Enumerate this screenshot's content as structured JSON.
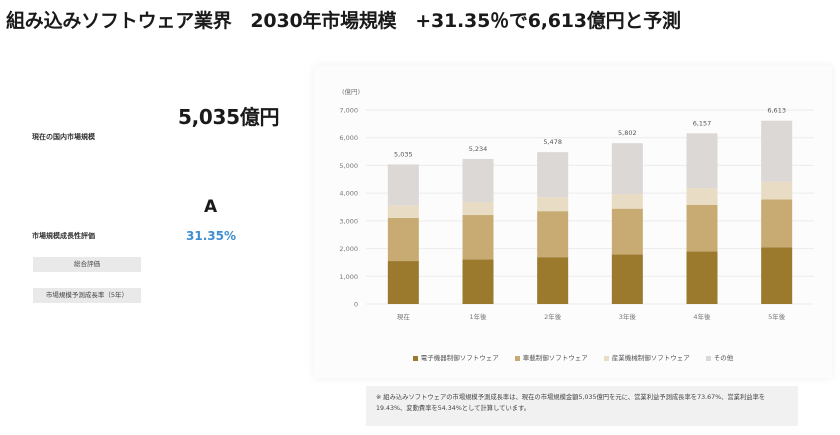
{
  "title": "組み込みソフトウェア業界　2030年市場規模　+31.35％で6,613億円と予測",
  "left_panel": {
    "market_label": "現在の国内市場規模",
    "market_value": "5,035億円",
    "evaluation_label": "市場規模成長性評価",
    "overall_label": "総合評価",
    "overall_value": "A",
    "growth_label": "市場規模予測成長率（5年）",
    "growth_value": "31.35%"
  },
  "note": "※ 組み込みソフトウェアの市場規模予測成長率は、現在の市場規模金額5,035億円を元に、営業利益予測成長率を73.67%、営業利益率を19.43%、変動費率を54.34%として計算しています。",
  "colors": {
    "series": [
      "#9c7a2d",
      "#c8ab72",
      "#e9dcc4",
      "#dbd8d5"
    ],
    "growth_text": "#3e8ed0"
  },
  "chart_data": {
    "type": "bar",
    "stacked": true,
    "unit_label": "(億円)",
    "categories": [
      "現在",
      "1年後",
      "2年後",
      "3年後",
      "4年後",
      "5年後"
    ],
    "totals": [
      5035,
      5234,
      5478,
      5802,
      6157,
      6613
    ],
    "total_labels": [
      "5,035",
      "5,234",
      "5,478",
      "5,802",
      "6,157",
      "6,613"
    ],
    "series": [
      {
        "name": "電子機器制御ソフトウェア",
        "values": [
          1550,
          1610,
          1690,
          1790,
          1900,
          2040
        ]
      },
      {
        "name": "車載制御ソフトウェア",
        "values": [
          1560,
          1600,
          1660,
          1650,
          1680,
          1730
        ]
      },
      {
        "name": "産業機械制御ソフトウェア",
        "values": [
          450,
          470,
          500,
          530,
          600,
          640
        ]
      },
      {
        "name": "その他",
        "values": [
          1475,
          1554,
          1628,
          1832,
          1977,
          2203
        ]
      }
    ],
    "ylim": [
      0,
      7000
    ],
    "yticks": [
      0,
      1000,
      2000,
      3000,
      4000,
      5000,
      6000,
      7000
    ],
    "ytick_labels": [
      "0",
      "1,000",
      "2,000",
      "3,000",
      "4,000",
      "5,000",
      "6,000",
      "7,000"
    ],
    "legend_position": "bottom"
  }
}
